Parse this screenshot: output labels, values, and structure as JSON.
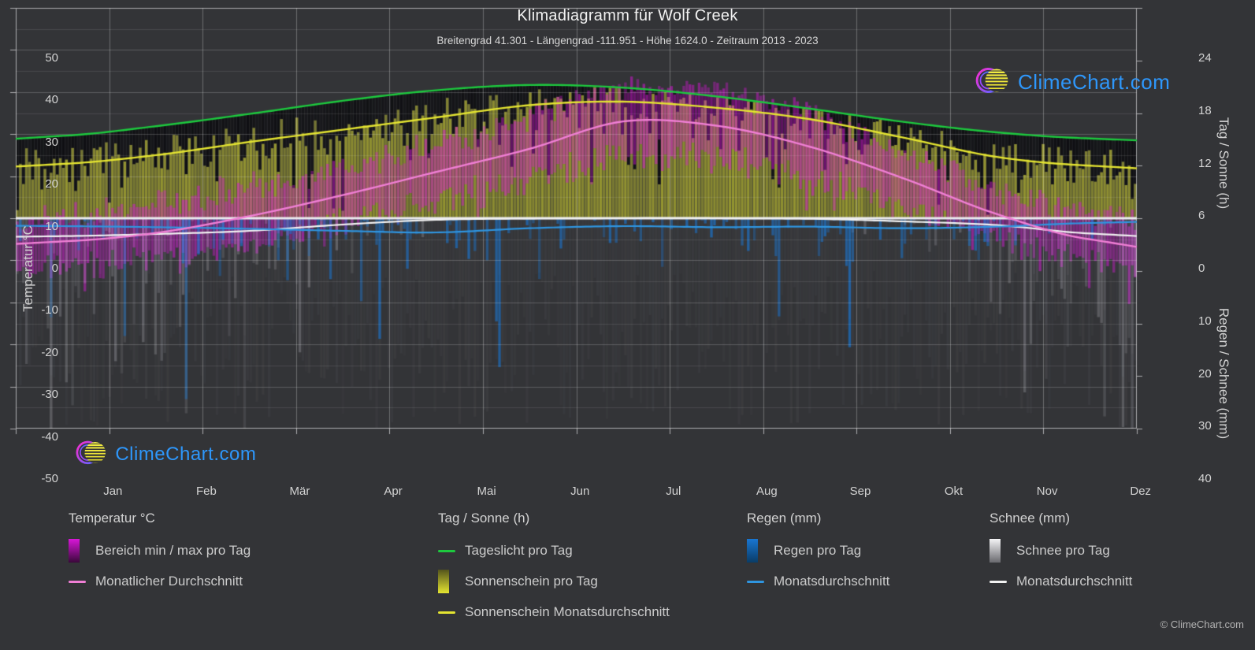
{
  "header": {
    "title": "Klimadiagramm für Wolf Creek",
    "subtitle": "Breitengrad 41.301 - Längengrad -111.951 - Höhe 1624.0 - Zeitraum 2013 - 2023"
  },
  "watermark": {
    "text": "ClimeChart.com"
  },
  "footer": {
    "copyright": "© ClimeChart.com"
  },
  "axes": {
    "left": {
      "title": "Temperatur °C",
      "ticks": [
        50,
        40,
        30,
        20,
        10,
        0,
        -10,
        -20,
        -30,
        -40,
        -50
      ],
      "range": [
        -50,
        50
      ]
    },
    "right_sun": {
      "title": "Tag / Sonne (h)",
      "ticks": [
        24,
        18,
        12,
        6,
        0
      ],
      "range": [
        0,
        24
      ]
    },
    "right_precip": {
      "title": "Regen / Schnee (mm)",
      "ticks": [
        10,
        20,
        30,
        40
      ],
      "range": [
        0,
        40
      ],
      "direction": "down"
    }
  },
  "legend": {
    "groups": [
      {
        "title": "Temperatur °C",
        "items": [
          {
            "label": "Bereich min / max pro Tag"
          },
          {
            "label": "Monatlicher Durchschnitt"
          }
        ]
      },
      {
        "title": "Tag / Sonne (h)",
        "items": [
          {
            "label": "Tageslicht pro Tag"
          },
          {
            "label": "Sonnenschein pro Tag"
          },
          {
            "label": "Sonnenschein Monatsdurchschnitt"
          }
        ]
      },
      {
        "title": "Regen (mm)",
        "items": [
          {
            "label": "Regen pro Tag"
          },
          {
            "label": "Monatsdurchschnitt"
          }
        ]
      },
      {
        "title": "Schnee (mm)",
        "items": [
          {
            "label": "Schnee pro Tag"
          },
          {
            "label": "Monatsdurchschnitt"
          }
        ]
      }
    ]
  },
  "colors": {
    "background": "#333437",
    "daylight_line": "#1dc93e",
    "sunshine_line": "#e4e431",
    "sunshine_bar": "#d7d732",
    "temp_line": "#f07fd5",
    "temp_range_bar": "#d816d8",
    "rain_line": "#2f95e0",
    "rain_bar": "#1976d2",
    "snow_line": "#f2f2f2",
    "snow_bar": "#dcdce4",
    "zero_line": "#ececf0",
    "dark_band": "#0a0a0c",
    "watermark_text": "#2e97fb",
    "logo_sun": "#e8df2e",
    "logo_ring_start": "#ff2bd1",
    "logo_ring_end": "#5a64ff"
  },
  "chart_data": {
    "type": "bar",
    "subtype": "climate-composite",
    "title": "Klimadiagramm für Wolf Creek",
    "months": [
      "Jan",
      "Feb",
      "Mär",
      "Apr",
      "Mai",
      "Jun",
      "Jul",
      "Aug",
      "Sep",
      "Okt",
      "Nov",
      "Dez"
    ],
    "ylabel_left": "Temperatur °C",
    "ylabel_right_top": "Tag / Sonne (h)",
    "ylabel_right_bottom": "Regen / Schnee (mm)",
    "ylim_temp_c": [
      -50,
      50
    ],
    "ylim_sun_h": [
      0,
      24
    ],
    "ylim_precip_mm": [
      0,
      40
    ],
    "grid": true,
    "legend_position": "bottom",
    "series": [
      {
        "name": "Tageslicht pro Tag",
        "kind": "line",
        "unit": "h",
        "values": [
          9.4,
          10.5,
          11.9,
          13.4,
          14.6,
          15.2,
          14.9,
          13.9,
          12.5,
          11.0,
          9.8,
          9.1
        ]
      },
      {
        "name": "Sonnenschein Monatsdurchschnitt",
        "kind": "line",
        "unit": "h",
        "values": [
          6.2,
          7.2,
          8.7,
          10.1,
          11.5,
          12.9,
          13.3,
          12.6,
          11.3,
          9.2,
          7.0,
          6.0
        ]
      },
      {
        "name": "Sonnenschein pro Tag",
        "kind": "daily-bar",
        "unit": "h",
        "monthly_mean": [
          6.2,
          7.2,
          8.7,
          10.1,
          11.5,
          12.9,
          13.3,
          12.6,
          11.3,
          9.2,
          7.0,
          6.0
        ]
      },
      {
        "name": "Monatlicher Durchschnitt (Temperatur)",
        "kind": "line",
        "unit": "°C",
        "values": [
          -5.5,
          -3.5,
          0.5,
          5.5,
          11.0,
          16.5,
          23.0,
          22.0,
          17.0,
          9.5,
          1.0,
          -5.0
        ]
      },
      {
        "name": "Bereich min / max pro Tag (Temperatur)",
        "kind": "daily-range-bar",
        "unit": "°C",
        "monthly_mean_max": [
          1,
          3,
          7,
          12,
          18,
          24,
          31,
          30,
          25,
          16,
          7,
          1
        ],
        "monthly_mean_min": [
          -11,
          -10,
          -6,
          -1,
          4,
          9,
          15,
          14,
          9,
          3,
          -4,
          -10
        ]
      },
      {
        "name": "Monatsdurchschnitt (Regen)",
        "kind": "line",
        "unit": "mm",
        "values": [
          1.5,
          1.7,
          2.0,
          2.4,
          2.7,
          1.9,
          1.5,
          1.7,
          1.6,
          1.9,
          1.6,
          0.9
        ]
      },
      {
        "name": "Regen pro Tag",
        "kind": "daily-bar",
        "unit": "mm",
        "monthly_mean": [
          1.5,
          1.7,
          2.0,
          2.4,
          2.7,
          1.9,
          1.5,
          1.7,
          1.6,
          1.9,
          1.6,
          0.9
        ]
      },
      {
        "name": "Monatsdurchschnitt (Schnee)",
        "kind": "line",
        "unit": "mm",
        "values": [
          3.4,
          3.0,
          2.4,
          1.2,
          0.3,
          0.05,
          0.0,
          0.0,
          0.1,
          0.6,
          1.3,
          2.9
        ]
      },
      {
        "name": "Schnee pro Tag",
        "kind": "daily-bar",
        "unit": "mm",
        "monthly_mean": [
          3.4,
          3.0,
          2.4,
          1.2,
          0.3,
          0.05,
          0.0,
          0.0,
          0.1,
          0.6,
          1.3,
          2.9
        ]
      }
    ]
  }
}
